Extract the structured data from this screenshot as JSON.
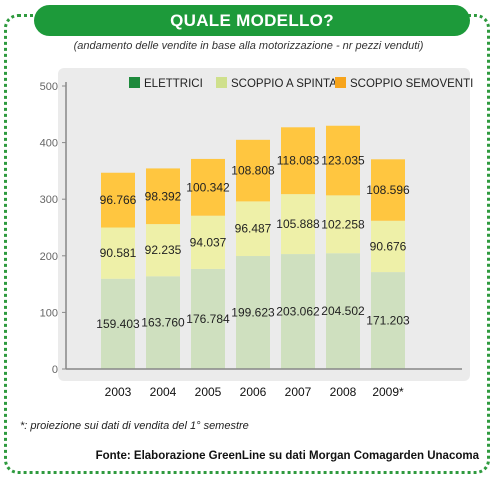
{
  "title": "QUALE MODELLO?",
  "subtitle": "(andamento delle vendite in base alla motorizzazione - nr pezzi venduti)",
  "footnote": "*: proiezione sui dati di vendita del 1° semestre",
  "source": "Fonte: Elaborazione GreenLine su dati Morgan Comagarden Unacoma",
  "colors": {
    "frame": "#2e9a3e",
    "title_bg": "#1d9a3a",
    "panel": "#ebebeb",
    "elettrici": "#cfe0bf",
    "scoppio_spinta": "#eef0a8",
    "scoppio_semoventi": "#ffc640"
  },
  "chart_data": {
    "type": "bar",
    "stacked": true,
    "categories": [
      "2003",
      "2004",
      "2005",
      "2006",
      "2007",
      "2008",
      "2009*"
    ],
    "series": [
      {
        "name": "ELETTRICI",
        "legend_color": "#1e8a3c",
        "fill_color": "#cfe0bf",
        "values": [
          159.403,
          163.76,
          176.784,
          199.623,
          203.062,
          204.502,
          171.203
        ],
        "labels": [
          "159.403",
          "163.760",
          "176.784",
          "199.623",
          "203.062",
          "204.502",
          "171.203"
        ]
      },
      {
        "name": "SCOPPIO A SPINTA",
        "legend_color": "#cfe08c",
        "fill_color": "#eef0a8",
        "values": [
          90.581,
          92.235,
          94.037,
          96.487,
          105.888,
          102.258,
          90.676
        ],
        "labels": [
          "90.581",
          "92.235",
          "94.037",
          "96.487",
          "105.888",
          "102.258",
          "90.676"
        ]
      },
      {
        "name": "SCOPPIO SEMOVENTI",
        "legend_color": "#f7a41b",
        "fill_color": "#ffc640",
        "values": [
          96.766,
          98.392,
          100.342,
          108.808,
          118.083,
          123.035,
          108.596
        ],
        "labels": [
          "96.766",
          "98.392",
          "100.342",
          "108.808",
          "118.083",
          "123.035",
          "108.596"
        ]
      }
    ],
    "ylim": [
      0,
      500
    ],
    "yticks": [
      "0",
      "100",
      "200",
      "300",
      "400",
      "500"
    ],
    "xlabel": "",
    "ylabel": "",
    "grid": false,
    "legend_position": "top-right"
  }
}
